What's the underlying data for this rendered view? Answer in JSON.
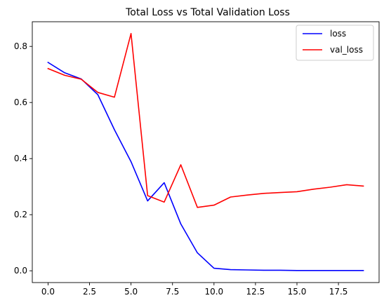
{
  "chart_data": {
    "type": "line",
    "title": "Total Loss vs Total Validation Loss",
    "xlabel": "",
    "ylabel": "",
    "xlim": [
      -0.95,
      19.95
    ],
    "ylim": [
      -0.042,
      0.888
    ],
    "x_ticks": [
      0.0,
      2.5,
      5.0,
      7.5,
      10.0,
      12.5,
      15.0,
      17.5
    ],
    "x_tick_labels": [
      "0.0",
      "2.5",
      "5.0",
      "7.5",
      "10.0",
      "12.5",
      "15.0",
      "17.5"
    ],
    "y_ticks": [
      0.0,
      0.2,
      0.4,
      0.6,
      0.8
    ],
    "y_tick_labels": [
      "0.0",
      "0.2",
      "0.4",
      "0.6",
      "0.8"
    ],
    "grid": false,
    "legend_position": "top-right",
    "x": [
      0,
      1,
      2,
      3,
      4,
      5,
      6,
      7,
      8,
      9,
      10,
      11,
      12,
      13,
      14,
      15,
      16,
      17,
      18,
      19
    ],
    "series": [
      {
        "name": "loss",
        "color": "#0000ff",
        "values": [
          0.743,
          0.706,
          0.684,
          0.628,
          0.503,
          0.389,
          0.249,
          0.314,
          0.167,
          0.064,
          0.009,
          0.004,
          0.003,
          0.002,
          0.002,
          0.001,
          0.001,
          0.001,
          0.001,
          0.001
        ]
      },
      {
        "name": "val_loss",
        "color": "#ff0000",
        "values": [
          0.721,
          0.697,
          0.683,
          0.636,
          0.619,
          0.846,
          0.268,
          0.245,
          0.378,
          0.226,
          0.234,
          0.263,
          0.27,
          0.276,
          0.279,
          0.282,
          0.291,
          0.298,
          0.307,
          0.302
        ]
      }
    ]
  }
}
